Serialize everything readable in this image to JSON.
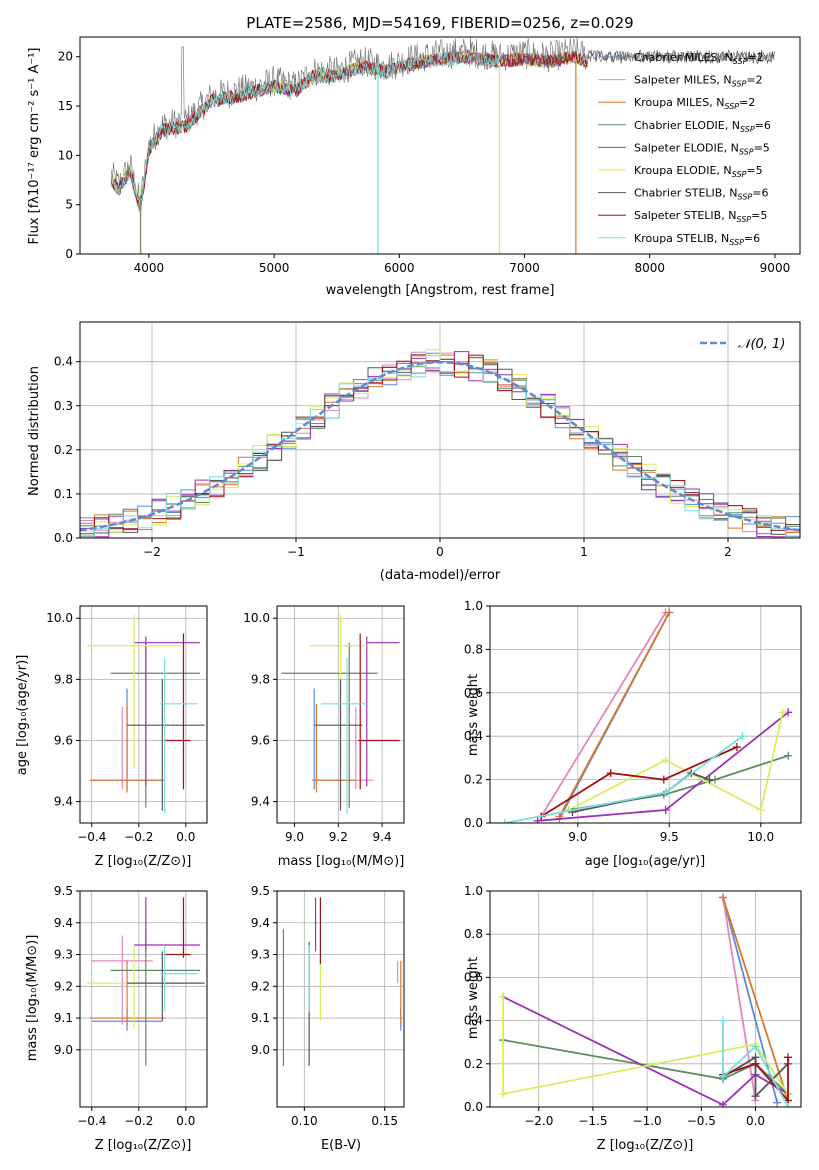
{
  "figure": {
    "title": "PLATE=2586, MJD=54169, FIBERID=0256, z=0.029",
    "panels": {
      "spectrum": {
        "xlabel": "wavelength [Angstrom, rest frame]",
        "ylabel": "Flux [fλ10⁻¹⁷ erg cm⁻² s⁻¹ A⁻¹]"
      },
      "residuals": {
        "xlabel": "(data-model)/error",
        "ylabel": "Normed distribution",
        "legend": "𝒩(0, 1)"
      },
      "age_vs_Z": {
        "xlabel": "Z [log₁₀(Z/Z⊙)]",
        "ylabel": "age  [log₁₀(age/yr)]"
      },
      "age_vs_mass": {
        "xlabel": "mass [log₁₀(M/M⊙)]"
      },
      "weight_vs_age": {
        "xlabel": "age  [log₁₀(age/yr)]",
        "ylabel": "mass weight"
      },
      "mass_vs_Z": {
        "xlabel": "Z [log₁₀(Z/Z⊙)]",
        "ylabel": "mass [log₁₀(M/M⊙)]"
      },
      "mass_vs_ebv": {
        "xlabel": "E(B-V)"
      },
      "weight_vs_Z": {
        "xlabel": "Z [log₁₀(Z/Z⊙)]",
        "ylabel": "mass weight"
      }
    }
  },
  "legend_entries": [
    {
      "label": "Chabrier MILES, N",
      "sub": "SSP",
      "n": "=2",
      "color": "#5b8bd8"
    },
    {
      "label": "Salpeter MILES, N",
      "sub": "SSP",
      "n": "=2",
      "color": "#e585c0"
    },
    {
      "label": "Kroupa MILES, N",
      "sub": "SSP",
      "n": "=2",
      "color": "#d9772b"
    },
    {
      "label": "Chabrier ELODIE, N",
      "sub": "SSP",
      "n": "=6",
      "color": "#5c8a62"
    },
    {
      "label": "Salpeter ELODIE, N",
      "sub": "SSP",
      "n": "=5",
      "color": "#9e2fb8"
    },
    {
      "label": "Kroupa ELODIE, N",
      "sub": "SSP",
      "n": "=5",
      "color": "#d9ec5c"
    },
    {
      "label": "Chabrier STELIB, N",
      "sub": "SSP",
      "n": "=6",
      "color": "#555555"
    },
    {
      "label": "Salpeter STELIB, N",
      "sub": "SSP",
      "n": "=5",
      "color": "#a01018"
    },
    {
      "label": "Kroupa STELIB, N",
      "sub": "SSP",
      "n": "=6",
      "color": "#77dde0"
    }
  ],
  "chart_data": [
    {
      "panel": "spectrum",
      "type": "line",
      "xlim": [
        3450,
        9200
      ],
      "ylim": [
        0,
        22
      ],
      "xticks": [
        4000,
        5000,
        6000,
        7000,
        8000,
        9000
      ],
      "yticks": [
        0,
        5,
        10,
        15,
        20
      ],
      "grid": false,
      "data_curve": [
        [
          3700,
          8
        ],
        [
          3760,
          7
        ],
        [
          3850,
          9
        ],
        [
          3930,
          5
        ],
        [
          4000,
          11
        ],
        [
          4100,
          13
        ],
        [
          4300,
          13.5
        ],
        [
          4500,
          16
        ],
        [
          4700,
          16.5
        ],
        [
          4862,
          17
        ],
        [
          5000,
          17.5
        ],
        [
          5175,
          17
        ],
        [
          5300,
          18.5
        ],
        [
          5500,
          18.5
        ],
        [
          5700,
          19.5
        ],
        [
          5893,
          19
        ],
        [
          6100,
          19.8
        ],
        [
          6300,
          20.2
        ],
        [
          6563,
          20.5
        ],
        [
          6800,
          20
        ],
        [
          7000,
          20.3
        ],
        [
          7200,
          20
        ],
        [
          7400,
          20.5
        ],
        [
          7500,
          20
        ]
      ],
      "model_ends": {
        "Chabrier MILES": 7400,
        "Salpeter MILES": 7400,
        "Kroupa MILES": 7400,
        "Chabrier STELIB": 9000,
        "Kroupa STELIB": 6800
      },
      "dropouts": [
        5830,
        6800,
        7410
      ]
    },
    {
      "panel": "residuals",
      "type": "line",
      "xlim": [
        -2.5,
        2.5
      ],
      "ylim": [
        0,
        0.49
      ],
      "xticks": [
        -2,
        -1,
        0,
        1,
        2
      ],
      "yticks": [
        0.0,
        0.1,
        0.2,
        0.3,
        0.4
      ],
      "grid": true,
      "bins": 50,
      "series": [
        {
          "name": "𝒩(0, 1)",
          "function": "normal_pdf",
          "mean": 0,
          "sigma": 1
        }
      ]
    },
    {
      "panel": "age_vs_Z",
      "type": "scatter",
      "xlim": [
        -0.45,
        0.09
      ],
      "ylim": [
        9.33,
        10.04
      ],
      "xticks": [
        -0.4,
        -0.2,
        0.0
      ],
      "yticks": [
        9.4,
        9.6,
        9.8,
        10.0
      ],
      "grid": true,
      "points": [
        {
          "model": "Chabrier MILES",
          "x": -0.25,
          "xerr": 0.15,
          "y": 9.47,
          "yerr": [
            0.03,
            0.3
          ]
        },
        {
          "model": "Salpeter MILES",
          "x": -0.27,
          "xerr": 0.13,
          "y": 9.47,
          "yerr": [
            0.03,
            0.24
          ]
        },
        {
          "model": "Kroupa MILES",
          "x": -0.25,
          "xerr": 0.16,
          "y": 9.47,
          "yerr": [
            0.04,
            0.25
          ]
        },
        {
          "model": "Chabrier ELODIE",
          "x": -0.17,
          "xerr": [
            0.15,
            0.23
          ],
          "y": 9.82,
          "yerr": [
            0.44,
            0.1
          ]
        },
        {
          "model": "Salpeter ELODIE",
          "x": -0.17,
          "xerr": [
            0.05,
            0.23
          ],
          "y": 9.92,
          "yerr": [
            0.47,
            0.02
          ]
        },
        {
          "model": "Kroupa ELODIE",
          "x": -0.22,
          "xerr": [
            0.2,
            0.2
          ],
          "y": 9.91,
          "yerr": [
            0.4,
            0.1
          ]
        },
        {
          "model": "Chabrier STELIB",
          "x": -0.1,
          "xerr": [
            0.15,
            0.18
          ],
          "y": 9.65,
          "yerr": [
            0.28,
            0.15
          ]
        },
        {
          "model": "Salpeter STELIB",
          "x": -0.01,
          "xerr": [
            0.08,
            0.03
          ],
          "y": 9.6,
          "yerr": [
            0.16,
            0.35
          ]
        },
        {
          "model": "Kroupa STELIB",
          "x": -0.09,
          "xerr": [
            0.02,
            0.14
          ],
          "y": 9.72,
          "yerr": [
            0.36,
            0.15
          ]
        }
      ]
    },
    {
      "panel": "age_vs_mass",
      "type": "scatter",
      "xlim": [
        8.92,
        9.5
      ],
      "ylim": [
        9.33,
        10.04
      ],
      "xticks": [
        9.0,
        9.2,
        9.4
      ],
      "yticks": [
        9.4,
        9.6,
        9.8,
        10.0
      ],
      "grid": true,
      "points": [
        {
          "model": "Chabrier MILES",
          "x": 9.09,
          "xerr": [
            0.01,
            0.14
          ],
          "y": 9.47,
          "yerr": [
            0.03,
            0.3
          ]
        },
        {
          "model": "Salpeter MILES",
          "x": 9.28,
          "xerr": [
            0.2,
            0.08
          ],
          "y": 9.47,
          "yerr": [
            0.03,
            0.24
          ]
        },
        {
          "model": "Kroupa MILES",
          "x": 9.1,
          "xerr": [
            0.01,
            0.18
          ],
          "y": 9.47,
          "yerr": [
            0.04,
            0.25
          ]
        },
        {
          "model": "Chabrier ELODIE",
          "x": 9.25,
          "xerr": [
            0.31,
            0.13
          ],
          "y": 9.82,
          "yerr": [
            0.44,
            0.1
          ]
        },
        {
          "model": "Salpeter ELODIE",
          "x": 9.33,
          "xerr": [
            0.0,
            0.15
          ],
          "y": 9.92,
          "yerr": [
            0.47,
            0.02
          ]
        },
        {
          "model": "Kroupa ELODIE",
          "x": 9.21,
          "xerr": [
            0.14,
            0.12
          ],
          "y": 9.91,
          "yerr": [
            0.4,
            0.1
          ]
        },
        {
          "model": "Chabrier STELIB",
          "x": 9.21,
          "xerr": [
            0.12,
            0.1
          ],
          "y": 9.65,
          "yerr": [
            0.28,
            0.15
          ]
        },
        {
          "model": "Salpeter STELIB",
          "x": 9.3,
          "xerr": [
            0.01,
            0.18
          ],
          "y": 9.6,
          "yerr": [
            0.16,
            0.35
          ]
        },
        {
          "model": "Kroupa STELIB",
          "x": 9.24,
          "xerr": [
            0.12,
            0.09
          ],
          "y": 9.72,
          "yerr": [
            0.36,
            0.15
          ]
        }
      ]
    },
    {
      "panel": "weight_vs_age",
      "type": "line",
      "xlim": [
        8.52,
        10.22
      ],
      "ylim": [
        0,
        1
      ],
      "xticks": [
        9.0,
        9.5,
        10.0
      ],
      "yticks": [
        0.0,
        0.2,
        0.4,
        0.6,
        0.8,
        1.0
      ],
      "grid": true,
      "series": [
        {
          "name": "Chabrier MILES",
          "x": [
            8.9,
            9.5
          ],
          "y": [
            0.02,
            0.97
          ]
        },
        {
          "name": "Salpeter MILES",
          "x": [
            8.8,
            9.48
          ],
          "y": [
            0.03,
            0.97
          ]
        },
        {
          "name": "Kroupa MILES",
          "x": [
            8.9,
            9.5
          ],
          "y": [
            0.03,
            0.97
          ]
        },
        {
          "name": "Chabrier ELODIE",
          "x": [
            8.95,
            9.47,
            9.75,
            10.15
          ],
          "y": [
            0.06,
            0.13,
            0.2,
            0.31
          ]
        },
        {
          "name": "Salpeter ELODIE",
          "x": [
            8.78,
            9.48,
            10.15
          ],
          "y": [
            0.01,
            0.06,
            0.51
          ]
        },
        {
          "name": "Kroupa ELODIE",
          "x": [
            8.95,
            9.48,
            10.0,
            10.12
          ],
          "y": [
            0.06,
            0.29,
            0.06,
            0.51
          ]
        },
        {
          "name": "Chabrier STELIB",
          "x": [
            8.97,
            9.48,
            9.62,
            9.72
          ],
          "y": [
            0.05,
            0.14,
            0.23,
            0.2
          ]
        },
        {
          "name": "Salpeter STELIB",
          "x": [
            8.8,
            9.18,
            9.47,
            9.87
          ],
          "y": [
            0.03,
            0.23,
            0.2,
            0.35
          ]
        },
        {
          "name": "Kroupa STELIB",
          "x": [
            8.6,
            9.48,
            9.9
          ],
          "y": [
            0.0,
            0.14,
            0.4
          ]
        }
      ]
    },
    {
      "panel": "mass_vs_Z",
      "type": "scatter",
      "xlim": [
        -0.45,
        0.09
      ],
      "ylim": [
        8.82,
        9.5
      ],
      "xticks": [
        -0.4,
        -0.2,
        0.0
      ],
      "yticks": [
        9.0,
        9.1,
        9.2,
        9.3,
        9.4,
        9.5
      ],
      "grid": true,
      "points": [
        {
          "model": "Chabrier MILES",
          "x": -0.25,
          "xerr": 0.15,
          "y": 9.09,
          "yerr": [
            0.03,
            0.04
          ]
        },
        {
          "model": "Salpeter MILES",
          "x": -0.27,
          "xerr": 0.13,
          "y": 9.28,
          "yerr": [
            0.2,
            0.08
          ]
        },
        {
          "model": "Kroupa MILES",
          "x": -0.25,
          "xerr": 0.16,
          "y": 9.1,
          "yerr": [
            0.02,
            0.18
          ]
        },
        {
          "model": "Chabrier ELODIE",
          "x": -0.17,
          "xerr": [
            0.15,
            0.23
          ],
          "y": 9.25,
          "yerr": [
            0.3,
            0.13
          ]
        },
        {
          "model": "Salpeter ELODIE",
          "x": -0.17,
          "xerr": [
            0.05,
            0.23
          ],
          "y": 9.33,
          "yerr": [
            0.02,
            0.15
          ]
        },
        {
          "model": "Kroupa ELODIE",
          "x": -0.22,
          "xerr": [
            0.2,
            0.2
          ],
          "y": 9.21,
          "yerr": [
            0.14,
            0.12
          ]
        },
        {
          "model": "Chabrier STELIB",
          "x": -0.1,
          "xerr": [
            0.15,
            0.18
          ],
          "y": 9.21,
          "yerr": [
            0.12,
            0.1
          ]
        },
        {
          "model": "Salpeter STELIB",
          "x": -0.01,
          "xerr": [
            0.08,
            0.03
          ],
          "y": 9.3,
          "yerr": [
            0.01,
            0.18
          ]
        },
        {
          "model": "Kroupa STELIB",
          "x": -0.09,
          "xerr": [
            0.02,
            0.14
          ],
          "y": 9.24,
          "yerr": [
            0.12,
            0.09
          ]
        }
      ]
    },
    {
      "panel": "mass_vs_ebv",
      "type": "scatter",
      "xlim": [
        0.083,
        0.162
      ],
      "ylim": [
        8.82,
        9.5
      ],
      "xticks": [
        0.1,
        0.15
      ],
      "yticks": [
        9.0,
        9.1,
        9.2,
        9.3,
        9.4,
        9.5
      ],
      "grid": true,
      "points": [
        {
          "model": "Chabrier MILES",
          "x": 0.16,
          "y": 9.09,
          "yerr": [
            0.03,
            0.04
          ]
        },
        {
          "model": "Salpeter MILES",
          "x": 0.158,
          "y": 9.25,
          "yerr": [
            0.04,
            0.03
          ]
        },
        {
          "model": "Kroupa MILES",
          "x": 0.16,
          "y": 9.18,
          "yerr": [
            0.1,
            0.1
          ]
        },
        {
          "model": "Chabrier ELODIE",
          "x": 0.087,
          "y": 9.16,
          "yerr": [
            0.21,
            0.22
          ]
        },
        {
          "model": "Salpeter ELODIE",
          "x": 0.107,
          "y": 9.33,
          "yerr": [
            0.02,
            0.15
          ]
        },
        {
          "model": "Kroupa ELODIE",
          "x": 0.11,
          "y": 9.21,
          "yerr": [
            0.12,
            0.12
          ]
        },
        {
          "model": "Chabrier STELIB",
          "x": 0.103,
          "y": 9.17,
          "yerr": [
            0.22,
            0.17
          ]
        },
        {
          "model": "Salpeter STELIB",
          "x": 0.11,
          "y": 9.3,
          "yerr": [
            0.03,
            0.18
          ]
        },
        {
          "model": "Kroupa STELIB",
          "x": 0.103,
          "y": 9.24,
          "yerr": [
            0.12,
            0.09
          ]
        }
      ]
    },
    {
      "panel": "weight_vs_Z",
      "type": "line",
      "xlim": [
        -2.45,
        0.42
      ],
      "ylim": [
        0,
        1
      ],
      "xticks": [
        -2.0,
        -1.5,
        -1.0,
        -0.5,
        0.0
      ],
      "yticks": [
        0.0,
        0.2,
        0.4,
        0.6,
        0.8,
        1.0
      ],
      "grid": true,
      "series": [
        {
          "name": "Chabrier MILES",
          "x": [
            -0.3,
            0.2
          ],
          "y": [
            0.97,
            0.02
          ]
        },
        {
          "name": "Salpeter MILES",
          "x": [
            -0.3,
            0.0
          ],
          "y": [
            0.97,
            0.03
          ]
        },
        {
          "name": "Kroupa MILES",
          "x": [
            -0.3,
            0.3
          ],
          "y": [
            0.97,
            0.03
          ]
        },
        {
          "name": "Chabrier ELODIE",
          "x": [
            -2.33,
            -0.3,
            0.0,
            0.3
          ],
          "y": [
            0.31,
            0.13,
            0.2,
            0.06
          ]
        },
        {
          "name": "Salpeter ELODIE",
          "x": [
            -2.33,
            -0.3,
            0.0,
            0.3
          ],
          "y": [
            0.51,
            0.01,
            0.15,
            0.06
          ]
        },
        {
          "name": "Kroupa ELODIE",
          "x": [
            -2.33,
            -2.33,
            0.0,
            0.3
          ],
          "y": [
            0.51,
            0.06,
            0.29,
            0.06
          ]
        },
        {
          "name": "Chabrier STELIB",
          "x": [
            -0.3,
            0.0,
            0.0,
            0.3
          ],
          "y": [
            0.14,
            0.23,
            0.05,
            0.2
          ]
        },
        {
          "name": "Salpeter STELIB",
          "x": [
            -0.3,
            0.0,
            0.3,
            0.3
          ],
          "y": [
            0.15,
            0.2,
            0.03,
            0.23
          ]
        },
        {
          "name": "Kroupa STELIB",
          "x": [
            -0.3,
            -0.3,
            0.0,
            0.3
          ],
          "y": [
            0.4,
            0.14,
            0.28,
            0.0
          ]
        }
      ]
    }
  ]
}
